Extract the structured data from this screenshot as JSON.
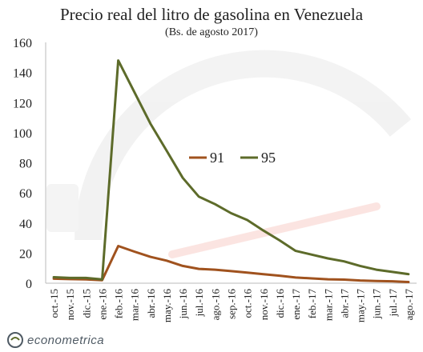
{
  "header": {
    "title": "Precio real del litro de gasolina en Venezuela",
    "subtitle": "(Bs. de agosto 2017)"
  },
  "brand": {
    "name": "econometrica",
    "icon": "econometrica-logo-icon"
  },
  "colors": {
    "series_91": "#a0521e",
    "series_95": "#5d6b2a",
    "axis": "#bbbbbb",
    "text": "#222222"
  },
  "chart_data": {
    "type": "line",
    "title": "Precio real del litro de gasolina en Venezuela",
    "subtitle": "(Bs. de agosto 2017)",
    "xlabel": "",
    "ylabel": "",
    "ylim": [
      0,
      160
    ],
    "yticks": [
      0,
      20,
      40,
      60,
      80,
      100,
      120,
      140,
      160
    ],
    "grid": false,
    "legend_position": "center",
    "categories": [
      "oct.-15",
      "nov.-15",
      "dic.-15",
      "ene.-16",
      "feb.-16",
      "mar.-16",
      "abr.-16",
      "may.-16",
      "jun.-16",
      "jul.-16",
      "ago.-16",
      "sep.-16",
      "oct.-16",
      "nov.-16",
      "dic.-16",
      "ene.-17",
      "feb.-17",
      "mar.-17",
      "abr.-17",
      "may.-17",
      "jun.-17",
      "jul.-17",
      "ago.-17"
    ],
    "series": [
      {
        "name": "91",
        "values": [
          3.0,
          2.7,
          2.5,
          2.0,
          24.7,
          21.0,
          17.5,
          15.0,
          11.5,
          9.5,
          9.0,
          8.0,
          7.0,
          6.0,
          5.0,
          3.8,
          3.2,
          2.6,
          2.4,
          1.8,
          1.5,
          1.3,
          0.8
        ]
      },
      {
        "name": "95",
        "values": [
          4.0,
          3.5,
          3.5,
          2.5,
          148.0,
          127.0,
          106.0,
          88.0,
          70.0,
          57.5,
          52.5,
          46.5,
          42.0,
          35.0,
          28.5,
          21.5,
          19.0,
          16.5,
          14.5,
          11.5,
          9.0,
          7.5,
          6.0
        ]
      }
    ]
  }
}
